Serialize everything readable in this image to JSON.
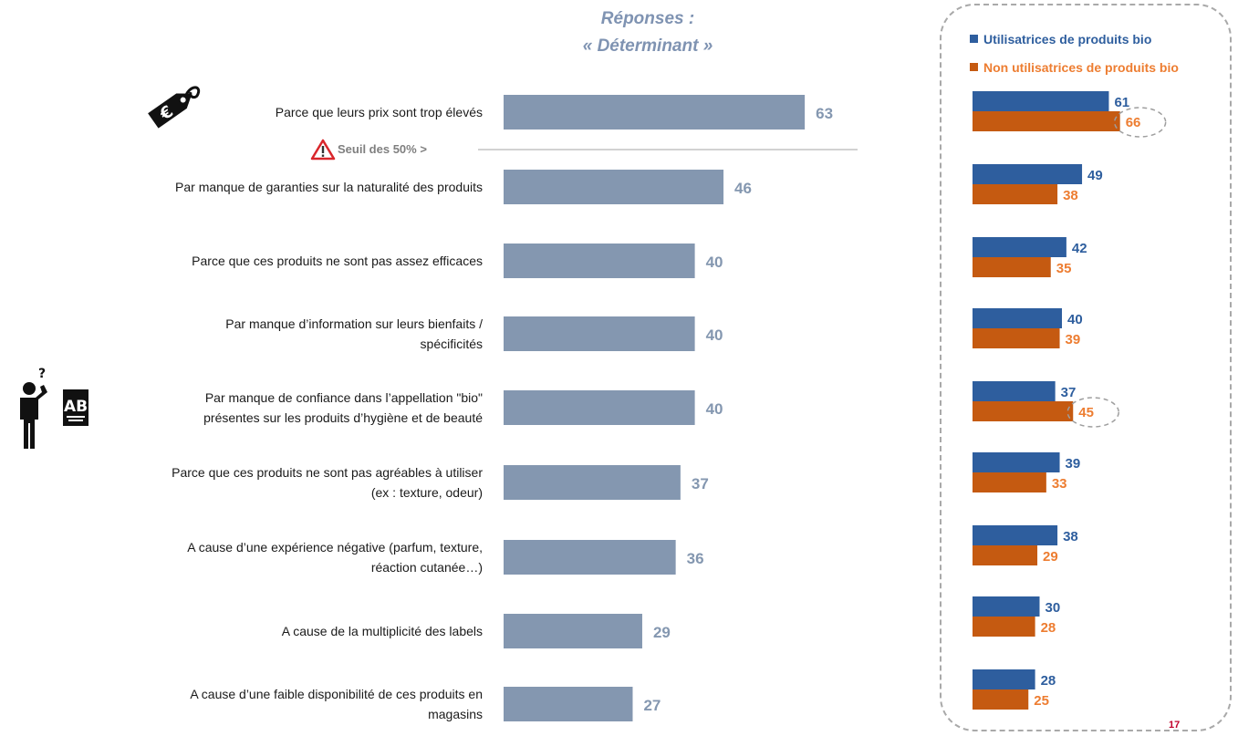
{
  "header": {
    "line1": "Réponses :",
    "line2": "« Déterminant »"
  },
  "threshold_label": "Seuil des 50%",
  "page_number": "17",
  "icons": [
    "price-tag-euro-icon",
    "warning-triangle-icon",
    "thinking-person-icon",
    "ab-organic-label-icon"
  ],
  "colors": {
    "main_bar": "#8497b0",
    "main_label": "#8497b0",
    "users": "#2e5e9e",
    "non_users": "#c55a11",
    "non_users_text": "#ed7d31"
  },
  "chart_data": [
    {
      "type": "bar",
      "orientation": "horizontal",
      "title": "Réponses : « Déterminant »",
      "categories": [
        [
          "Parce que leurs prix sont trop élevés"
        ],
        [
          "Par manque de garanties sur la naturalité des produits"
        ],
        [
          "Parce que ces produits ne sont pas assez efficaces"
        ],
        [
          "Par manque d’information sur leurs bienfaits /",
          "spécificités"
        ],
        [
          "Par manque de confiance dans l’appellation \"bio\"",
          "présentes sur les produits d’hygiène et de beauté"
        ],
        [
          "Parce que ces produits ne sont pas agréables à utiliser",
          "(ex : texture, odeur)"
        ],
        [
          "A cause d’une expérience négative (parfum, texture,",
          "réaction cutanée…)"
        ],
        [
          "A cause de la multiplicité des labels"
        ],
        [
          "A cause d’une faible disponibilité de ces produits en",
          "magasins"
        ]
      ],
      "values": [
        63,
        46,
        40,
        40,
        40,
        37,
        36,
        29,
        27
      ],
      "reference_line": {
        "value": 50,
        "label": "Seuil des 50%"
      }
    },
    {
      "type": "bar",
      "orientation": "horizontal",
      "legend_position": "top",
      "series": [
        {
          "name": "Utilisatrices de produits bio",
          "values": [
            61,
            49,
            42,
            40,
            37,
            39,
            38,
            30,
            28
          ]
        },
        {
          "name": "Non utilisatrices de produits bio",
          "values": [
            66,
            38,
            35,
            39,
            45,
            33,
            29,
            28,
            25
          ]
        }
      ],
      "highlighted": [
        {
          "series": 1,
          "index": 0
        },
        {
          "series": 1,
          "index": 4
        }
      ]
    }
  ]
}
